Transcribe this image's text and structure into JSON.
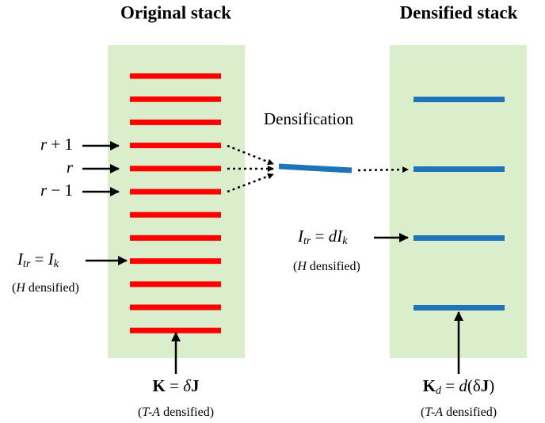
{
  "original": {
    "title": "Original stack",
    "layer_labels": [
      [
        "r",
        " + 1"
      ],
      [
        "r"
      ],
      [
        "r",
        " − 1"
      ]
    ],
    "current_label": [
      "I",
      "tr",
      " = ",
      "I",
      "k"
    ],
    "current_note": [
      "(",
      "H",
      " densified)"
    ],
    "kernel_label": [
      "K",
      " = ",
      "δ",
      "J"
    ],
    "kernel_note": [
      "(",
      "T-A",
      " densified)"
    ]
  },
  "densified": {
    "title": "Densified stack",
    "process_label": "Densification",
    "current_label": [
      "I",
      "tr",
      " = ",
      "dI",
      "k"
    ],
    "current_note": [
      "(",
      "H",
      " densified)"
    ],
    "kernel_label": [
      "K",
      "d",
      " = ",
      "d",
      "(δ",
      "J",
      ")"
    ],
    "kernel_note": [
      "(",
      "T-A",
      " densified)"
    ]
  }
}
